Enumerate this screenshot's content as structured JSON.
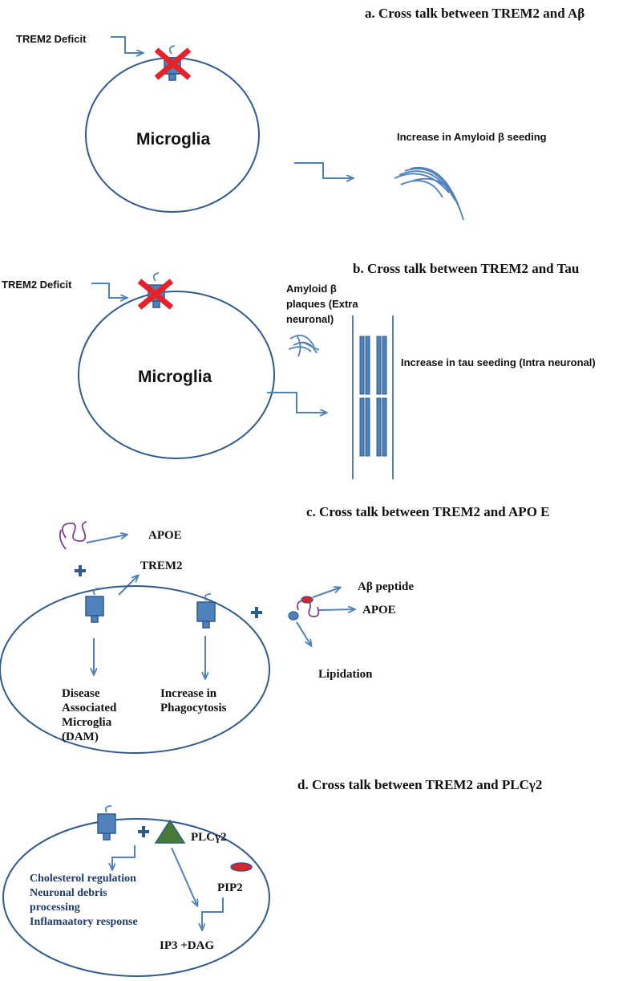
{
  "panel_a": {
    "title": "a. Cross talk between TREM2  and Aβ",
    "deficit_label": "TREM2 Deficit",
    "cell_label": "Microglia",
    "result_label": "Increase in Amyloid β seeding"
  },
  "panel_b": {
    "title": "b. Cross talk between TREM2  and Tau",
    "deficit_label": "TREM2 Deficit",
    "cell_label": "Microglia",
    "plaque_label_line1": "Amyloid β",
    "plaque_label_line2": "plaques (Extra",
    "plaque_label_line3": "neuronal)",
    "result_label": "Increase in tau seeding (Intra neuronal)"
  },
  "panel_c": {
    "title": "c. Cross talk between TREM2  and APO E",
    "apoe_label": "APOE",
    "trem2_label": "TREM2",
    "peptide_label": "Aβ peptide",
    "apoe_label_2": "APOE",
    "lipidation_label": "Lipidation",
    "dam_line1": "Disease",
    "dam_line2": "Associated",
    "dam_line3": "Microglia",
    "dam_line4": "(DAM)",
    "phago_line1": "Increase  in",
    "phago_line2": "Phagocytosis"
  },
  "panel_d": {
    "title": "d. Cross talk between TREM2  and PLCγ2",
    "plc_label": "PLCγ2",
    "pip2_label": "PIP2",
    "product_label": "IP3 +DAG",
    "effects": [
      "Cholesterol regulation",
      "Neuronal debris",
      "processing",
      "Inflamaatory response"
    ]
  },
  "colors": {
    "arrow": "#4f81bd",
    "cell_outline": "#2f5a8f",
    "receptor": "#4f81bd",
    "cross": "#e8202a",
    "apoe_coil": "#7b3f99",
    "plc_triangle": "#4a7a3a",
    "pip2": "#d9232d"
  }
}
